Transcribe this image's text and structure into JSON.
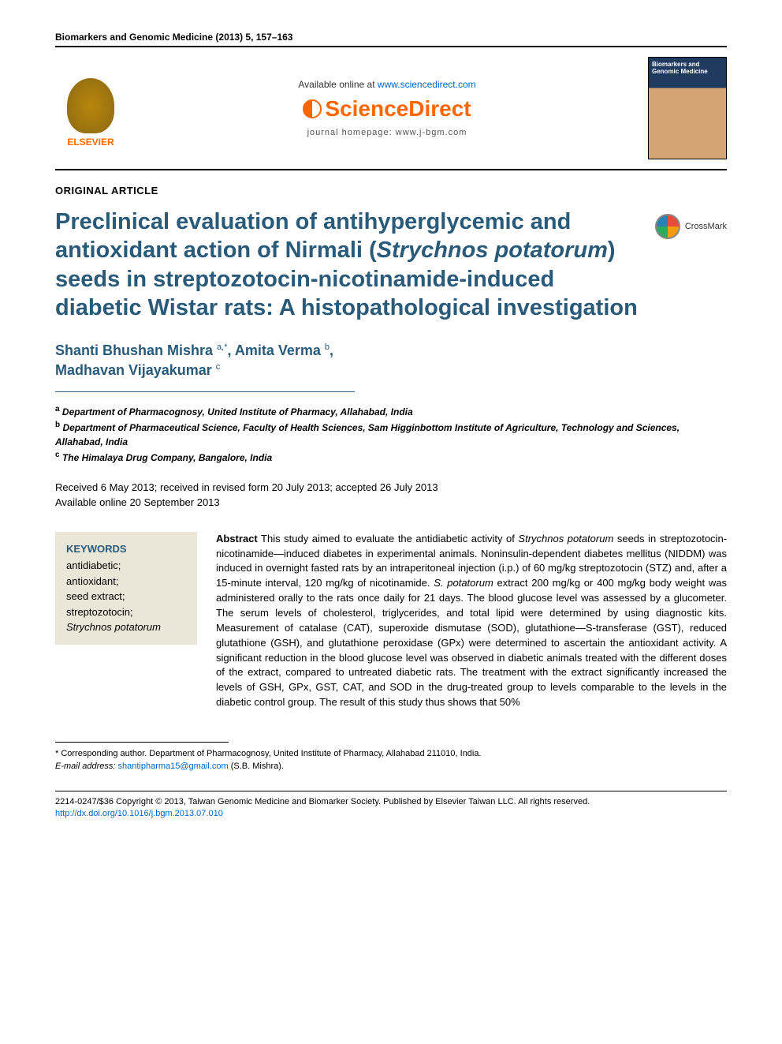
{
  "journal_reference": "Biomarkers and Genomic Medicine (2013) 5, 157–163",
  "header": {
    "available_prefix": "Available online at ",
    "available_link": "www.sciencedirect.com",
    "sd_name": "ScienceDirect",
    "homepage": "journal homepage: www.j-bgm.com",
    "elsevier": "ELSEVIER",
    "cover_title": "Biomarkers and Genomic Medicine"
  },
  "article_type": "ORIGINAL ARTICLE",
  "title_parts": {
    "p1": "Preclinical evaluation of antihyperglycemic and antioxidant action of Nirmali (",
    "p2_italic": "Strychnos potatorum",
    "p3": ") seeds in streptozotocin-nicotinamide-induced diabetic Wistar rats: A histopathological investigation"
  },
  "crossmark": "CrossMark",
  "authors": {
    "a1_name": "Shanti Bhushan Mishra ",
    "a1_sup": "a,*",
    "sep1": ", ",
    "a2_name": "Amita Verma ",
    "a2_sup": "b",
    "sep2": ", ",
    "a3_name": "Madhavan Vijayakumar ",
    "a3_sup": "c"
  },
  "affiliations": {
    "a": "Department of Pharmacognosy, United Institute of Pharmacy, Allahabad, India",
    "b": "Department of Pharmaceutical Science, Faculty of Health Sciences, Sam Higginbottom Institute of Agriculture, Technology and Sciences, Allahabad, India",
    "c": "The Himalaya Drug Company, Bangalore, India"
  },
  "dates": {
    "line1": "Received 6 May 2013; received in revised form 20 July 2013; accepted 26 July 2013",
    "line2": "Available online 20 September 2013"
  },
  "keywords": {
    "title": "KEYWORDS",
    "k1": "antidiabetic;",
    "k2": "antioxidant;",
    "k3": "seed extract;",
    "k4": "streptozotocin;",
    "k5_italic": "Strychnos potatorum"
  },
  "abstract": {
    "label": "Abstract",
    "t1": "   This study aimed to evaluate the antidiabetic activity of ",
    "t2_italic": "Strychnos potatorum",
    "t3": " seeds in streptozotocin-nicotinamide—induced diabetes in experimental animals. Noninsulin-dependent diabetes mellitus (NIDDM) was induced in overnight fasted rats by an intraperitoneal injection (i.p.) of 60 mg/kg streptozotocin (STZ) and, after a 15-minute interval, 120 mg/kg of nicotinamide. ",
    "t4_italic": "S. potatorum",
    "t5": " extract 200 mg/kg or 400 mg/kg body weight was administered orally to the rats once daily for 21 days. The blood glucose level was assessed by a glucometer. The serum levels of cholesterol, triglycerides, and total lipid were determined by using diagnostic kits. Measurement of catalase (CAT), superoxide dismutase (SOD), glutathione—S-transferase (GST), reduced glutathione (GSH), and glutathione peroxidase (GPx) were determined to ascertain the antioxidant activity. A significant reduction in the blood glucose level was observed in diabetic animals treated with the different doses of the extract, compared to untreated diabetic rats. The treatment with the extract significantly increased the levels of GSH, GPx, GST, CAT, and SOD in the drug-treated group to levels comparable to the levels in the diabetic control group. The result of this study thus shows that 50%"
  },
  "footnotes": {
    "corr": "* Corresponding author. Department of Pharmacognosy, United Institute of Pharmacy, Allahabad 211010, India.",
    "email_label": "E-mail address:",
    "email": "shantipharma15@gmail.com",
    "email_suffix": " (S.B. Mishra)."
  },
  "copyright": {
    "line1": "2214-0247/$36 Copyright © 2013, Taiwan Genomic Medicine and Biomarker Society. Published by Elsevier Taiwan LLC. All rights reserved.",
    "doi": "http://dx.doi.org/10.1016/j.bgm.2013.07.010"
  },
  "colors": {
    "heading": "#2a5a7a",
    "keywords_bg": "#eae6d8",
    "link": "#0066cc",
    "sd_orange": "#ff6600"
  }
}
